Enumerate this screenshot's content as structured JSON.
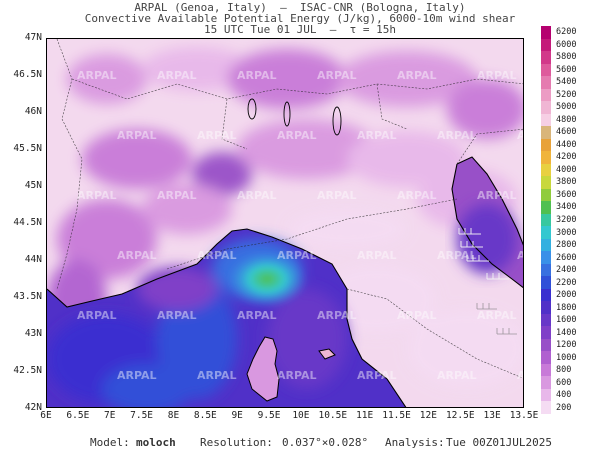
{
  "header": {
    "line1": "ARPAL (Genoa, Italy)  –  ISAC-CNR (Bologna, Italy)",
    "line2": "Convective Available Potential Energy (J/kg), 6000-10m wind shear",
    "line3": "15 UTC Tue 01 JUL  –  τ = 15h"
  },
  "map": {
    "lat_ticks": [
      "47N",
      "46.5N",
      "46N",
      "45.5N",
      "45N",
      "44.5N",
      "44N",
      "43.5N",
      "43N",
      "42.5N",
      "42N"
    ],
    "lon_ticks": [
      "6E",
      "6.5E",
      "7E",
      "7.5E",
      "8E",
      "8.5E",
      "9E",
      "9.5E",
      "10E",
      "10.5E",
      "11E",
      "11.5E",
      "12E",
      "12.5E",
      "13E",
      "13.5E"
    ],
    "watermark": "ARPAL",
    "land_color": "#f3d9ee",
    "sea_color": "#3a2fd0",
    "coast_color": "#000000"
  },
  "colorbar": {
    "levels": [
      "6200",
      "6000",
      "5800",
      "5600",
      "5400",
      "5200",
      "5000",
      "4800",
      "4600",
      "4400",
      "4200",
      "4000",
      "3800",
      "3600",
      "3400",
      "3200",
      "3000",
      "2800",
      "2600",
      "2400",
      "2200",
      "2000",
      "1800",
      "1600",
      "1400",
      "1200",
      "1000",
      "800",
      "600",
      "400",
      "200"
    ],
    "colors": [
      "#b5006f",
      "#c41a7a",
      "#d2388a",
      "#de5a9c",
      "#e57bb0",
      "#ec9cc4",
      "#f0b6d4",
      "#f6cfe4",
      "#d9b57a",
      "#e8a23a",
      "#f0b43c",
      "#e8d040",
      "#c8d83c",
      "#90cc3c",
      "#50c050",
      "#38c8a0",
      "#34c8d0",
      "#34b0e0",
      "#3a90e8",
      "#3870e0",
      "#3050d8",
      "#3a2fd0",
      "#5030c8",
      "#6838c8",
      "#8040c8",
      "#9850c8",
      "#b060d0",
      "#c87ad8",
      "#d998e0",
      "#e8b8ea",
      "#f5dcf3"
    ]
  },
  "footer": {
    "model_label": "Model:",
    "model_value": "moloch",
    "resolution_label": "Resolution:",
    "resolution_value": "0.037°×0.028°",
    "analysis_label": "Analysis:",
    "analysis_value": "Tue 00Z01JUL2025"
  }
}
